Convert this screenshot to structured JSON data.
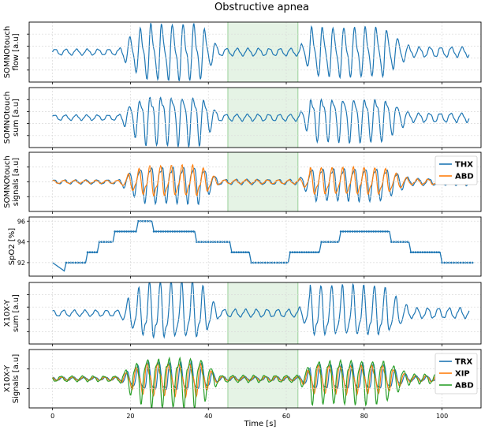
{
  "chart_data": {
    "type": "line",
    "title": "Obstructive apnea",
    "xlabel": "Time [s]",
    "xlim": [
      -6,
      110
    ],
    "xticks": [
      0,
      20,
      40,
      60,
      80,
      100
    ],
    "highlight_span": [
      45,
      63
    ],
    "colors": {
      "blue": "#1f77b4",
      "orange": "#ff7f0e",
      "green": "#2ca02c",
      "highlight": "#2ca02c"
    },
    "panels": [
      {
        "id": "flow",
        "ylabel_lines": [
          "SOMNOtouch",
          "flow [a.u]"
        ],
        "yticks": [
          "",
          "",
          "",
          ""
        ],
        "legend": [],
        "series": [
          {
            "name": "",
            "color": "blue",
            "kind": "resp",
            "amp_scale": 1.0
          }
        ]
      },
      {
        "id": "sum",
        "ylabel_lines": [
          "SOMNOtouch",
          "sum [a.u]"
        ],
        "yticks": [
          "",
          "",
          "",
          ""
        ],
        "legend": [],
        "series": [
          {
            "name": "",
            "color": "blue",
            "kind": "resp",
            "amp_scale": 0.9
          }
        ]
      },
      {
        "id": "signals",
        "ylabel_lines": [
          "SOMNOtouch",
          "signals [a.u]"
        ],
        "yticks": [
          "",
          "",
          ""
        ],
        "legend": [
          "THX",
          "ABD"
        ],
        "series": [
          {
            "name": "THX",
            "color": "blue",
            "kind": "resp",
            "amp_scale": 0.7
          },
          {
            "name": "ABD",
            "color": "orange",
            "kind": "resp",
            "amp_scale": 0.55
          }
        ]
      },
      {
        "id": "spo2",
        "ylabel_lines": [
          "SpO2 [%]"
        ],
        "ylim": [
          90.7,
          96.4
        ],
        "yticks": [
          92,
          94,
          96
        ],
        "legend": [],
        "spo2_steps": [
          [
            0,
            92
          ],
          [
            3,
            91.2
          ],
          [
            3.5,
            92
          ],
          [
            8.5,
            92
          ],
          [
            9,
            93
          ],
          [
            11.5,
            93
          ],
          [
            12,
            94
          ],
          [
            15.5,
            94
          ],
          [
            16,
            95
          ],
          [
            21.5,
            95
          ],
          [
            22,
            96
          ],
          [
            25.5,
            96
          ],
          [
            26,
            95
          ],
          [
            36.5,
            95
          ],
          [
            37,
            94
          ],
          [
            45.5,
            94
          ],
          [
            46,
            93
          ],
          [
            50.5,
            93
          ],
          [
            51,
            92
          ],
          [
            60.5,
            92
          ],
          [
            61,
            93
          ],
          [
            68.5,
            93
          ],
          [
            69,
            94
          ],
          [
            73.5,
            94
          ],
          [
            74,
            95
          ],
          [
            86.5,
            95
          ],
          [
            87,
            94
          ],
          [
            91.5,
            94
          ],
          [
            92,
            93
          ],
          [
            99.5,
            93
          ],
          [
            100,
            92
          ],
          [
            108,
            92
          ]
        ]
      },
      {
        "id": "x10sum",
        "ylabel_lines": [
          "X10X-Y",
          "sum [a.u]"
        ],
        "yticks": [
          "",
          "",
          "",
          ""
        ],
        "legend": [],
        "series": [
          {
            "name": "",
            "color": "blue",
            "kind": "resp",
            "amp_scale": 1.0
          }
        ]
      },
      {
        "id": "x10sig",
        "ylabel_lines": [
          "X10X-Y",
          "Signals [a.u]"
        ],
        "yticks": [
          "",
          ""
        ],
        "legend": [
          "TRX",
          "XIP",
          "ABD"
        ],
        "series": [
          {
            "name": "TRX",
            "color": "blue",
            "kind": "resp",
            "amp_scale": 0.55
          },
          {
            "name": "XIP",
            "color": "orange",
            "kind": "resp",
            "amp_scale": 0.6
          },
          {
            "name": "ABD",
            "color": "green",
            "kind": "resp",
            "amp_scale": 0.95
          }
        ]
      }
    ]
  }
}
